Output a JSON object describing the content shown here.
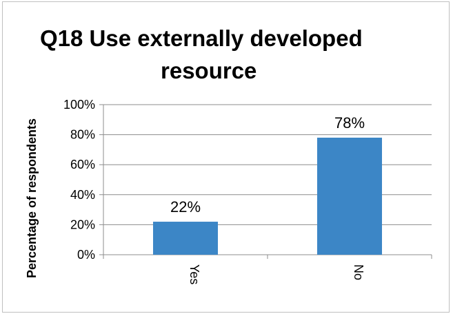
{
  "chart_data": {
    "type": "bar",
    "title_line1": "Q18 Use externally developed",
    "title_line2": "resource",
    "ylabel": "Percentage of respondents",
    "xlabel": "",
    "categories": [
      "Yes",
      "No"
    ],
    "values": [
      22,
      78
    ],
    "data_labels": [
      "22%",
      "78%"
    ],
    "ylim": [
      0,
      100
    ],
    "yticks": [
      "0%",
      "20%",
      "40%",
      "60%",
      "80%",
      "100%"
    ],
    "ytick_values": [
      0,
      20,
      40,
      60,
      80,
      100
    ],
    "bar_color": "#3c86c6",
    "grid": true,
    "legend": "none"
  }
}
